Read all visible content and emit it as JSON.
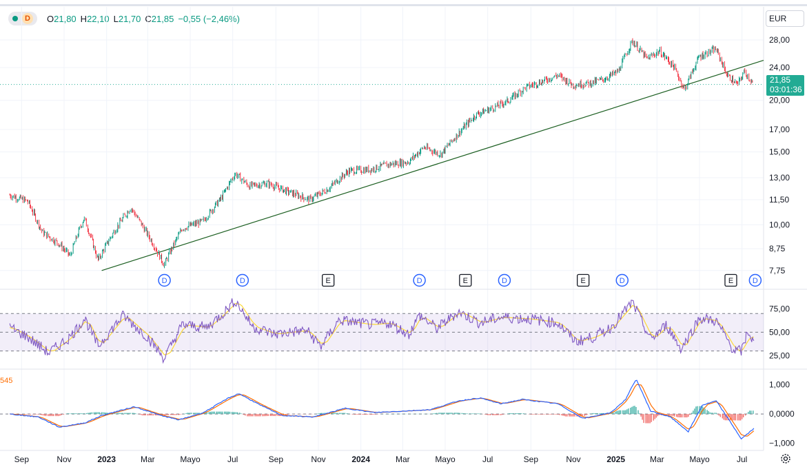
{
  "legend": {
    "interval": "D",
    "open_key": "O",
    "open": "21,80",
    "high_key": "H",
    "high": "22,10",
    "low_key": "L",
    "low": "21,70",
    "close_key": "C",
    "close": "21,85",
    "change": "−0,55 (−2,46%)"
  },
  "currency": "EUR",
  "price_tag": {
    "price": "21,85",
    "countdown": "03:01:36"
  },
  "macd_label": "545",
  "chart_data": [
    {
      "type": "candlestick",
      "title": "",
      "log_scale": true,
      "ylim": [
        7.2,
        30
      ],
      "y_ticks": [
        "28,00",
        "24,00",
        "20,00",
        "17,00",
        "15,00",
        "13,00",
        "11,50",
        "10,00",
        "8,75",
        "7,75"
      ],
      "x_ticks": [
        "Sep",
        "Nov",
        "2023",
        "Mar",
        "Mayo",
        "Jul",
        "Sep",
        "Nov",
        "2024",
        "Mar",
        "Mayo",
        "Jul",
        "Sep",
        "Nov",
        "2025",
        "Mar",
        "Mayo",
        "Jul"
      ],
      "x_range": [
        "2022-08",
        "2025-07"
      ],
      "approx_close_series": [
        [
          "2022-08-15",
          11.8
        ],
        [
          "2022-09-10",
          11.4
        ],
        [
          "2022-10-01",
          9.6
        ],
        [
          "2022-10-25",
          9.0
        ],
        [
          "2022-11-10",
          8.4
        ],
        [
          "2022-11-30",
          10.4
        ],
        [
          "2022-12-20",
          8.2
        ],
        [
          "2023-01-15",
          9.8
        ],
        [
          "2023-02-05",
          11.0
        ],
        [
          "2023-03-01",
          9.5
        ],
        [
          "2023-03-25",
          8.0
        ],
        [
          "2023-04-20",
          9.8
        ],
        [
          "2023-05-20",
          10.2
        ],
        [
          "2023-06-15",
          11.6
        ],
        [
          "2023-07-05",
          13.3
        ],
        [
          "2023-07-25",
          12.4
        ],
        [
          "2023-08-20",
          12.6
        ],
        [
          "2023-09-20",
          12.0
        ],
        [
          "2023-10-20",
          11.5
        ],
        [
          "2023-11-15",
          12.2
        ],
        [
          "2023-12-15",
          13.5
        ],
        [
          "2024-01-15",
          13.6
        ],
        [
          "2024-02-10",
          14.0
        ],
        [
          "2024-03-10",
          14.2
        ],
        [
          "2024-04-01",
          15.4
        ],
        [
          "2024-04-25",
          14.8
        ],
        [
          "2024-05-20",
          16.6
        ],
        [
          "2024-06-15",
          18.5
        ],
        [
          "2024-07-10",
          19.2
        ],
        [
          "2024-08-01",
          20.0
        ],
        [
          "2024-08-25",
          21.5
        ],
        [
          "2024-09-20",
          22.3
        ],
        [
          "2024-10-10",
          23.0
        ],
        [
          "2024-11-01",
          21.8
        ],
        [
          "2024-11-25",
          22.0
        ],
        [
          "2024-12-15",
          22.5
        ],
        [
          "2025-01-05",
          23.5
        ],
        [
          "2025-01-25",
          27.8
        ],
        [
          "2025-02-15",
          25.2
        ],
        [
          "2025-03-05",
          26.3
        ],
        [
          "2025-03-25",
          24.2
        ],
        [
          "2025-04-10",
          21.2
        ],
        [
          "2025-05-01",
          25.5
        ],
        [
          "2025-05-25",
          26.6
        ],
        [
          "2025-06-10",
          23.0
        ],
        [
          "2025-06-25",
          21.8
        ],
        [
          "2025-07-05",
          23.5
        ],
        [
          "2025-07-18",
          21.85
        ]
      ],
      "trendline": [
        [
          "2022-12-25",
          7.75
        ],
        [
          "2025-08-01",
          25.0
        ]
      ],
      "last_price": 21.85,
      "event_markers": [
        {
          "date": "2023-03-25",
          "label": "D"
        },
        {
          "date": "2023-07-15",
          "label": "D"
        },
        {
          "date": "2023-11-15",
          "label": "E"
        },
        {
          "date": "2024-03-25",
          "label": "D"
        },
        {
          "date": "2024-05-30",
          "label": "E"
        },
        {
          "date": "2024-07-25",
          "label": "D"
        },
        {
          "date": "2024-11-15",
          "label": "E"
        },
        {
          "date": "2025-01-10",
          "label": "D"
        },
        {
          "date": "2025-06-15",
          "label": "E"
        },
        {
          "date": "2025-07-20",
          "label": "D"
        }
      ]
    },
    {
      "type": "line",
      "ylim": [
        15,
        90
      ],
      "y_ticks": [
        "75,00",
        "50,00",
        "25,00"
      ],
      "band": [
        30,
        70
      ],
      "midline": 50,
      "approx_series": [
        [
          "2022-08-15",
          55
        ],
        [
          "2022-09-10",
          45
        ],
        [
          "2022-10-10",
          28
        ],
        [
          "2022-11-10",
          45
        ],
        [
          "2022-12-01",
          65
        ],
        [
          "2022-12-20",
          35
        ],
        [
          "2023-01-25",
          68
        ],
        [
          "2023-03-01",
          45
        ],
        [
          "2023-03-25",
          22
        ],
        [
          "2023-04-20",
          58
        ],
        [
          "2023-05-25",
          55
        ],
        [
          "2023-06-20",
          72
        ],
        [
          "2023-07-05",
          84
        ],
        [
          "2023-07-30",
          56
        ],
        [
          "2023-08-30",
          48
        ],
        [
          "2023-10-15",
          52
        ],
        [
          "2023-11-05",
          35
        ],
        [
          "2023-12-01",
          63
        ],
        [
          "2024-01-15",
          58
        ],
        [
          "2024-02-10",
          60
        ],
        [
          "2024-03-10",
          48
        ],
        [
          "2024-03-25",
          68
        ],
        [
          "2024-04-20",
          54
        ],
        [
          "2024-05-20",
          72
        ],
        [
          "2024-06-20",
          60
        ],
        [
          "2024-07-20",
          66
        ],
        [
          "2024-09-01",
          64
        ],
        [
          "2024-10-10",
          60
        ],
        [
          "2024-11-05",
          40
        ],
        [
          "2024-12-01",
          45
        ],
        [
          "2024-12-25",
          55
        ],
        [
          "2025-01-25",
          82
        ],
        [
          "2025-02-20",
          42
        ],
        [
          "2025-03-15",
          58
        ],
        [
          "2025-04-05",
          32
        ],
        [
          "2025-05-01",
          65
        ],
        [
          "2025-05-25",
          62
        ],
        [
          "2025-06-20",
          30
        ],
        [
          "2025-07-01",
          30
        ],
        [
          "2025-07-10",
          52
        ],
        [
          "2025-07-18",
          38
        ]
      ]
    },
    {
      "type": "line",
      "ylim": [
        -1.15,
        1.3
      ],
      "y_ticks": [
        "1,000",
        "0,0000",
        "−1,000"
      ],
      "approx_series": [
        [
          "2022-08-15",
          0.0
        ],
        [
          "2022-09-25",
          -0.1
        ],
        [
          "2022-10-25",
          -0.45
        ],
        [
          "2022-12-01",
          -0.3
        ],
        [
          "2022-12-25",
          -0.05
        ],
        [
          "2023-02-10",
          0.25
        ],
        [
          "2023-03-20",
          -0.05
        ],
        [
          "2023-04-15",
          -0.2
        ],
        [
          "2023-05-20",
          0.05
        ],
        [
          "2023-06-25",
          0.55
        ],
        [
          "2023-07-10",
          0.7
        ],
        [
          "2023-08-10",
          0.3
        ],
        [
          "2023-09-10",
          -0.05
        ],
        [
          "2023-10-25",
          -0.1
        ],
        [
          "2023-12-10",
          0.2
        ],
        [
          "2024-01-20",
          0.05
        ],
        [
          "2024-03-01",
          0.1
        ],
        [
          "2024-04-10",
          0.15
        ],
        [
          "2024-05-20",
          0.45
        ],
        [
          "2024-06-20",
          0.55
        ],
        [
          "2024-07-20",
          0.35
        ],
        [
          "2024-08-20",
          0.5
        ],
        [
          "2024-10-10",
          0.35
        ],
        [
          "2024-11-15",
          -0.15
        ],
        [
          "2024-12-25",
          0.05
        ],
        [
          "2025-01-15",
          0.5
        ],
        [
          "2025-01-30",
          1.2
        ],
        [
          "2025-02-20",
          0.1
        ],
        [
          "2025-03-20",
          -0.1
        ],
        [
          "2025-04-15",
          -0.6
        ],
        [
          "2025-05-05",
          0.3
        ],
        [
          "2025-05-25",
          0.45
        ],
        [
          "2025-06-15",
          -0.3
        ],
        [
          "2025-06-30",
          -0.85
        ],
        [
          "2025-07-18",
          -0.5
        ]
      ]
    }
  ]
}
